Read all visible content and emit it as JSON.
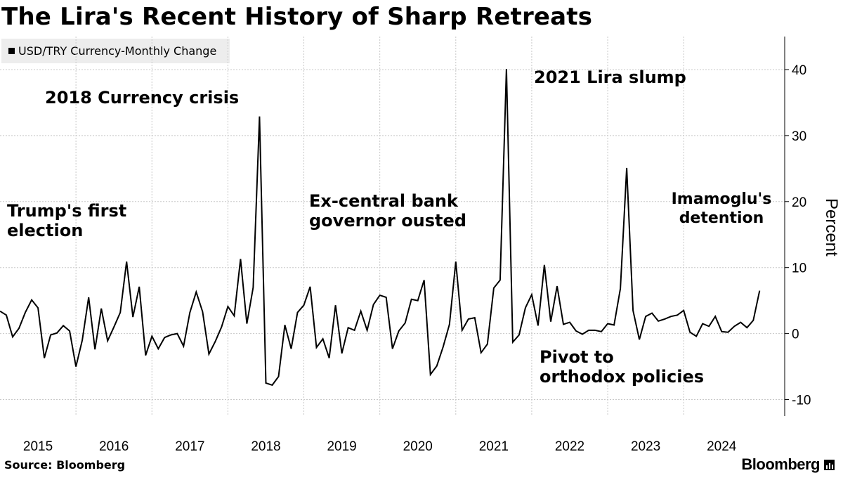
{
  "header": {
    "title": "The Lira's Recent History of Sharp Retreats"
  },
  "legend": {
    "label": "USD/TRY Currency-Monthly Change",
    "swatch_color": "#000000"
  },
  "footer": {
    "source": "Source: Bloomberg",
    "logo": "Bloomberg"
  },
  "chart_data": {
    "type": "line",
    "title": "The Lira's Recent History of Sharp Retreats",
    "ylabel": "Percent",
    "xlabel": "",
    "ylim": [
      -12.5,
      45
    ],
    "yticks": [
      40,
      30,
      20,
      10,
      0,
      -10
    ],
    "xlim": [
      2015.0,
      2025.33
    ],
    "x_tick_labels": [
      "2015",
      "2016",
      "2017",
      "2018",
      "2019",
      "2020",
      "2021",
      "2022",
      "2023",
      "2024"
    ],
    "grid": true,
    "axis_position": "right",
    "legend_position": "top-left",
    "series": [
      {
        "name": "USD/TRY Currency-Monthly Change",
        "color": "#000000",
        "start": "2015-01",
        "frequency": "monthly",
        "values": [
          3.4,
          2.8,
          -0.5,
          0.8,
          3.2,
          5.1,
          3.9,
          -3.7,
          -0.2,
          0.1,
          1.2,
          0.4,
          -5.0,
          -1.0,
          5.5,
          -2.4,
          3.8,
          -1.1,
          1.0,
          3.2,
          10.9,
          2.5,
          7.1,
          -3.3,
          -0.4,
          -2.3,
          -0.6,
          -0.2,
          0.0,
          -1.9,
          3.2,
          6.3,
          3.3,
          -3.1,
          -1.2,
          1.0,
          4.1,
          2.7,
          11.3,
          1.5,
          7.0,
          32.9,
          -7.5,
          -7.8,
          -6.5,
          1.3,
          -2.3,
          3.2,
          4.3,
          7.1,
          -2.1,
          -0.8,
          -3.7,
          4.3,
          -3.0,
          0.9,
          0.5,
          3.4,
          0.5,
          4.4,
          5.8,
          5.5,
          -2.3,
          0.4,
          1.6,
          5.2,
          5.0,
          8.1,
          -6.2,
          -4.9,
          -2.0,
          1.4,
          10.9,
          0.5,
          2.2,
          2.4,
          -2.9,
          -1.6,
          6.9,
          8.1,
          40.1,
          -1.3,
          -0.2,
          3.9,
          5.9,
          1.2,
          10.4,
          1.8,
          7.2,
          1.4,
          1.7,
          0.4,
          -0.1,
          0.5,
          0.5,
          0.3,
          1.5,
          1.3,
          6.8,
          25.1,
          3.5,
          -0.9,
          2.6,
          3.1,
          1.9,
          2.2,
          2.6,
          2.8,
          3.5,
          0.2,
          -0.4,
          1.5,
          1.1,
          2.6,
          0.3,
          0.2,
          1.1,
          1.7,
          0.9,
          2.0,
          6.5
        ]
      }
    ],
    "annotations": [
      {
        "id": "trump",
        "lines": [
          "Trump's first",
          "election"
        ]
      },
      {
        "id": "crisis2018",
        "lines": [
          "2018 Currency crisis"
        ]
      },
      {
        "id": "governor",
        "lines": [
          "Ex-central bank",
          "governor ousted"
        ]
      },
      {
        "id": "slump2021",
        "lines": [
          "2021 Lira slump"
        ]
      },
      {
        "id": "pivot",
        "lines": [
          "Pivot to",
          "orthodox policies"
        ]
      },
      {
        "id": "imamoglu",
        "lines": [
          "Imamoglu's",
          "detention"
        ]
      }
    ]
  }
}
